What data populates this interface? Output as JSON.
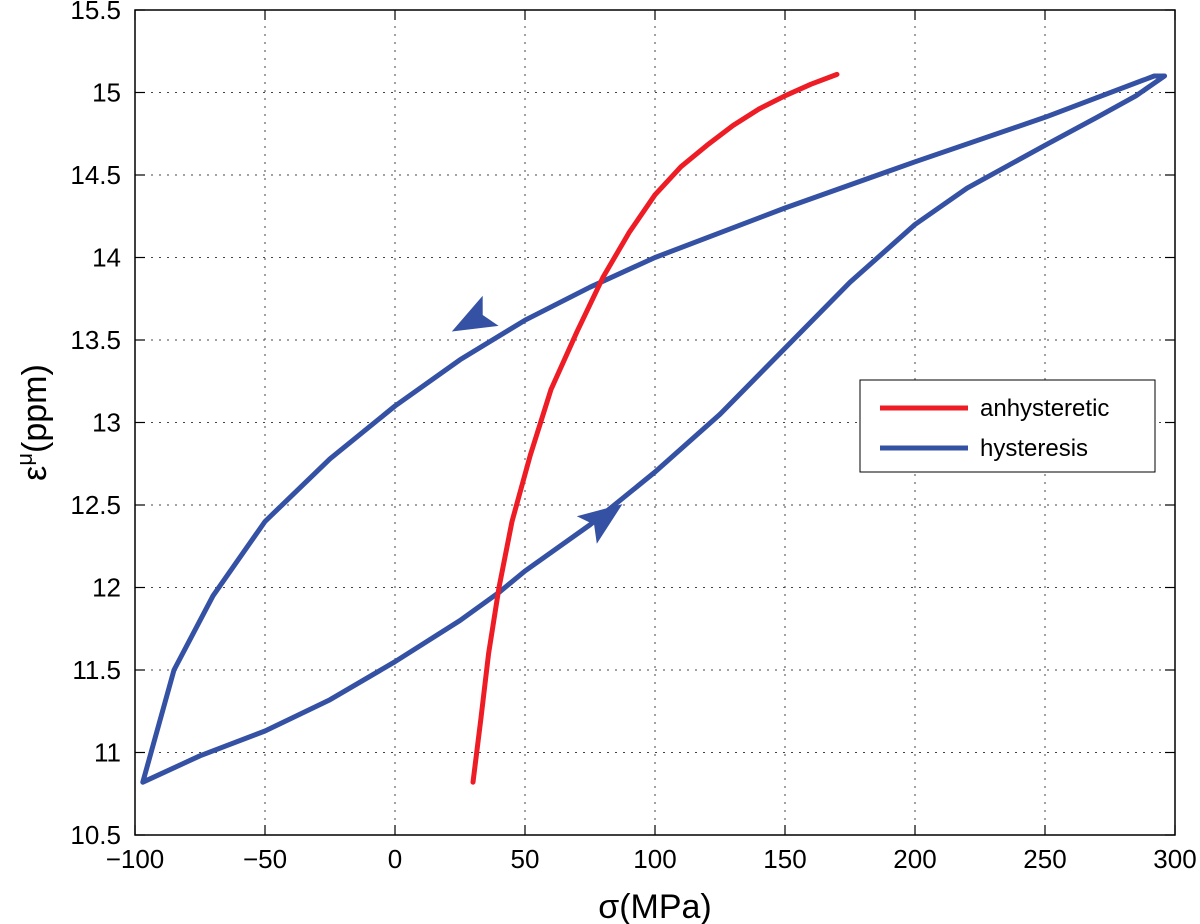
{
  "chart_data": {
    "type": "line",
    "title": "",
    "xlabel": "σ(MPa)",
    "ylabel_base": "ε",
    "ylabel_sup": "μ",
    "ylabel_unit": "(ppm)",
    "xlim": [
      -100,
      300
    ],
    "ylim": [
      10.5,
      15.5
    ],
    "xticks": [
      -100,
      -50,
      0,
      50,
      100,
      150,
      200,
      250,
      300
    ],
    "yticks": [
      10.5,
      11,
      11.5,
      12,
      12.5,
      13,
      13.5,
      14,
      14.5,
      15,
      15.5
    ],
    "xtick_labels": [
      "−100",
      "−50",
      "0",
      "50",
      "100",
      "150",
      "200",
      "250",
      "300"
    ],
    "ytick_labels": [
      "10.5",
      "11",
      "11.5",
      "12",
      "12.5",
      "13",
      "13.5",
      "14",
      "14.5",
      "15",
      "15.5"
    ],
    "grid": true,
    "legend_position": "center-right",
    "series": [
      {
        "name": "anhysteretic",
        "color": "#ee1c25",
        "x": [
          30,
          33,
          36,
          40,
          45,
          52,
          60,
          70,
          80,
          90,
          100,
          110,
          120,
          130,
          140,
          150,
          160,
          170
        ],
        "y": [
          10.82,
          11.2,
          11.6,
          12.0,
          12.4,
          12.8,
          13.2,
          13.55,
          13.88,
          14.15,
          14.38,
          14.55,
          14.68,
          14.8,
          14.9,
          14.98,
          15.05,
          15.11
        ]
      },
      {
        "name": "hysteresis",
        "color": "#3451a4",
        "x": [
          -97,
          -85,
          -70,
          -50,
          -25,
          0,
          25,
          50,
          75,
          100,
          150,
          200,
          250,
          292,
          296,
          285,
          270,
          250,
          220,
          200,
          175,
          150,
          125,
          100,
          75,
          50,
          40,
          25,
          0,
          -25,
          -50,
          -75,
          -97
        ],
        "y": [
          10.82,
          11.5,
          11.95,
          12.4,
          12.78,
          13.1,
          13.38,
          13.62,
          13.82,
          14.0,
          14.3,
          14.58,
          14.85,
          15.1,
          15.1,
          14.98,
          14.85,
          14.68,
          14.42,
          14.2,
          13.85,
          13.45,
          13.05,
          12.7,
          12.38,
          12.1,
          11.97,
          11.8,
          11.55,
          11.32,
          11.13,
          10.98,
          10.82
        ]
      }
    ],
    "arrows": [
      {
        "series": "hysteresis",
        "x": 80,
        "y": 12.42,
        "direction": "up-right"
      },
      {
        "series": "hysteresis",
        "x": 30,
        "y": 13.62,
        "direction": "down-left"
      }
    ]
  }
}
